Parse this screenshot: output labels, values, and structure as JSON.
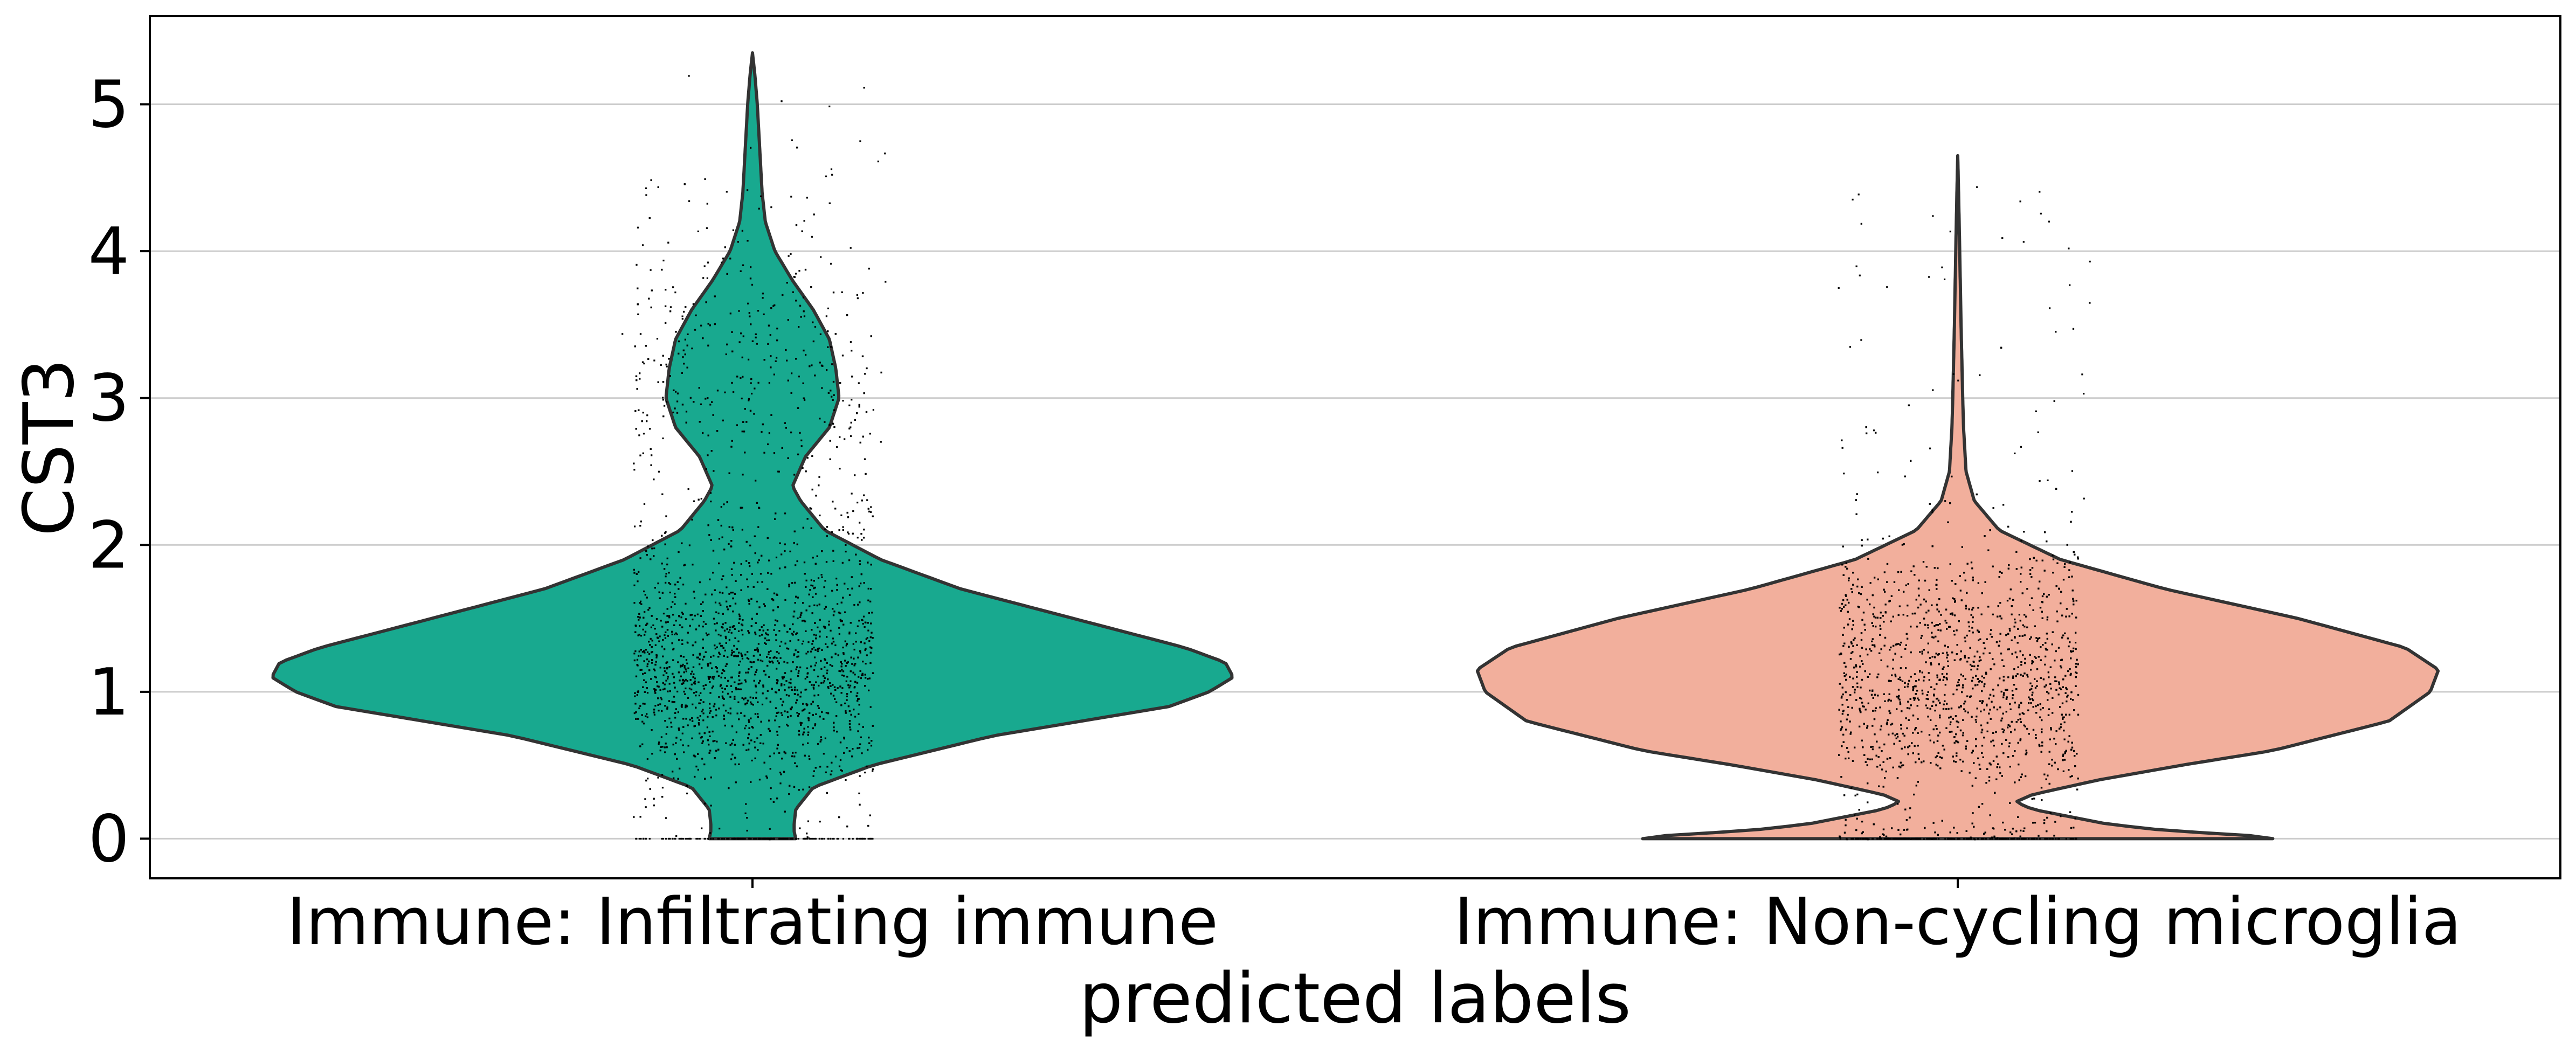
{
  "chart_data": {
    "type": "violin",
    "title": "",
    "xlabel": "predicted labels",
    "ylabel": "CST3",
    "ylim": [
      -0.27,
      5.6
    ],
    "yticks": [
      0,
      1,
      2,
      3,
      4,
      5
    ],
    "grid": "horizontal",
    "categories": [
      "Immune: Infiltrating immune",
      "Immune: Non-cycling microglia"
    ],
    "series": [
      {
        "category": "Immune: Infiltrating immune",
        "color": "#18a98f",
        "max": 5.35,
        "profile": [
          [
            0.0,
            0.27
          ],
          [
            0.05,
            0.26
          ],
          [
            0.1,
            0.26
          ],
          [
            0.2,
            0.27
          ],
          [
            0.35,
            0.38
          ],
          [
            0.5,
            0.75
          ],
          [
            0.7,
            1.5
          ],
          [
            0.9,
            2.6
          ],
          [
            1.0,
            2.85
          ],
          [
            1.1,
            3.0
          ],
          [
            1.2,
            2.95
          ],
          [
            1.3,
            2.7
          ],
          [
            1.5,
            2.0
          ],
          [
            1.7,
            1.3
          ],
          [
            1.9,
            0.8
          ],
          [
            2.1,
            0.45
          ],
          [
            2.3,
            0.3
          ],
          [
            2.4,
            0.25
          ],
          [
            2.6,
            0.33
          ],
          [
            2.8,
            0.48
          ],
          [
            3.0,
            0.54
          ],
          [
            3.2,
            0.52
          ],
          [
            3.4,
            0.48
          ],
          [
            3.6,
            0.38
          ],
          [
            3.8,
            0.25
          ],
          [
            4.0,
            0.14
          ],
          [
            4.2,
            0.08
          ],
          [
            4.4,
            0.06
          ],
          [
            4.6,
            0.05
          ],
          [
            4.8,
            0.04
          ],
          [
            5.0,
            0.03
          ],
          [
            5.2,
            0.015
          ],
          [
            5.35,
            0.0
          ]
        ]
      },
      {
        "category": "Immune: Non-cycling microglia",
        "color": "#f2af9c",
        "max": 4.65,
        "profile": [
          [
            0.0,
            1.9
          ],
          [
            0.03,
            1.7
          ],
          [
            0.05,
            1.3
          ],
          [
            0.1,
            0.9
          ],
          [
            0.2,
            0.45
          ],
          [
            0.25,
            0.35
          ],
          [
            0.3,
            0.45
          ],
          [
            0.4,
            0.85
          ],
          [
            0.5,
            1.35
          ],
          [
            0.6,
            1.9
          ],
          [
            0.8,
            2.6
          ],
          [
            1.0,
            2.85
          ],
          [
            1.15,
            2.9
          ],
          [
            1.3,
            2.7
          ],
          [
            1.5,
            2.05
          ],
          [
            1.7,
            1.25
          ],
          [
            1.9,
            0.62
          ],
          [
            2.1,
            0.25
          ],
          [
            2.3,
            0.1
          ],
          [
            2.5,
            0.05
          ],
          [
            2.8,
            0.035
          ],
          [
            3.0,
            0.03
          ],
          [
            3.5,
            0.02
          ],
          [
            4.0,
            0.012
          ],
          [
            4.4,
            0.005
          ],
          [
            4.65,
            0.0
          ]
        ]
      }
    ]
  }
}
